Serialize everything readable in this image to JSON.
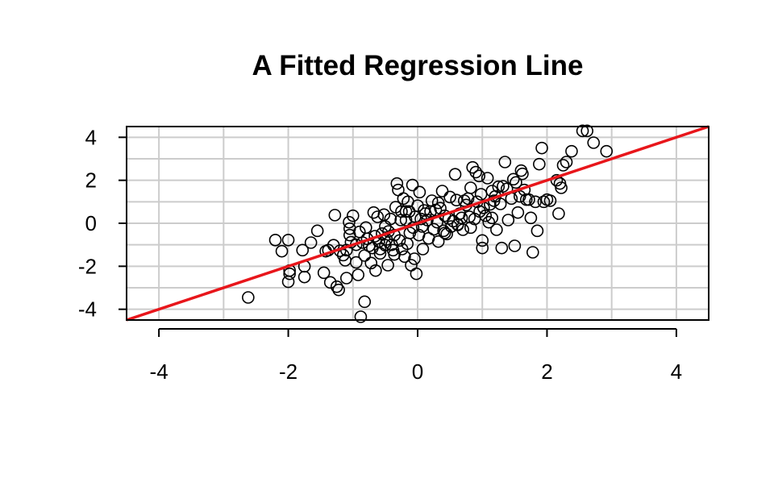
{
  "chart_data": {
    "type": "scatter",
    "title": "A Fitted Regression Line",
    "xlabel": "",
    "ylabel": "",
    "xlim": [
      -4.5,
      4.5
    ],
    "ylim": [
      -4.5,
      4.5
    ],
    "x_ticks": [
      -4,
      -2,
      0,
      2,
      4
    ],
    "y_ticks": [
      -4,
      -2,
      0,
      2,
      4
    ],
    "x_tick_labels": [
      "-4",
      "-2",
      "0",
      "2",
      "4"
    ],
    "y_tick_labels": [
      "4",
      "2",
      "0",
      "-2",
      "-4"
    ],
    "grid": true,
    "grid_minor_x": [
      -3,
      -1,
      1,
      3
    ],
    "grid_minor_y": [
      -3,
      -1,
      1,
      3
    ],
    "regression_line": {
      "intercept": 0.0,
      "slope": 1.0,
      "color": "#e8161b"
    },
    "colors": {
      "points": "#000000",
      "grid": "#cccccc",
      "fit": "#e8161b"
    },
    "points": [
      [
        -2.62,
        -3.45
      ],
      [
        -2.2,
        -0.78
      ],
      [
        -2.1,
        -1.3
      ],
      [
        -2.0,
        -0.78
      ],
      [
        -2.0,
        -2.72
      ],
      [
        -1.98,
        -2.2
      ],
      [
        -1.98,
        -2.35
      ],
      [
        -1.78,
        -1.25
      ],
      [
        -1.75,
        -2.0
      ],
      [
        -1.75,
        -2.5
      ],
      [
        -1.65,
        -0.9
      ],
      [
        -1.55,
        -0.35
      ],
      [
        -1.45,
        -2.3
      ],
      [
        -1.42,
        -1.3
      ],
      [
        -1.38,
        -1.25
      ],
      [
        -1.35,
        -2.75
      ],
      [
        -1.3,
        -1.02
      ],
      [
        -1.28,
        0.38
      ],
      [
        -1.25,
        -2.95
      ],
      [
        -1.22,
        -3.1
      ],
      [
        -1.2,
        -1.28
      ],
      [
        -1.15,
        -1.48
      ],
      [
        -1.12,
        -1.72
      ],
      [
        -1.1,
        -2.55
      ],
      [
        -1.1,
        -1.25
      ],
      [
        -1.06,
        0.05
      ],
      [
        -1.05,
        -0.25
      ],
      [
        -1.05,
        -0.55
      ],
      [
        -1.03,
        -0.88
      ],
      [
        -1.0,
        0.35
      ],
      [
        -0.95,
        -1.82
      ],
      [
        -0.92,
        -2.4
      ],
      [
        -0.9,
        -0.4
      ],
      [
        -0.88,
        -4.35
      ],
      [
        -0.85,
        -0.9
      ],
      [
        -0.82,
        -3.65
      ],
      [
        -0.8,
        -0.2
      ],
      [
        -0.78,
        -0.72
      ],
      [
        -0.75,
        -1.05
      ],
      [
        -0.72,
        -1.85
      ],
      [
        -0.7,
        -1.15
      ],
      [
        -0.68,
        0.5
      ],
      [
        -0.66,
        -0.6
      ],
      [
        -0.65,
        -2.2
      ],
      [
        -0.62,
        0.3
      ],
      [
        -0.6,
        -0.85
      ],
      [
        -0.58,
        -1.2
      ],
      [
        -0.55,
        -0.48
      ],
      [
        -0.52,
        0.4
      ],
      [
        -0.5,
        -0.15
      ],
      [
        -0.5,
        -1.02
      ],
      [
        -0.48,
        -0.75
      ],
      [
        -0.46,
        -1.95
      ],
      [
        -0.45,
        -0.38
      ],
      [
        -0.42,
        0.2
      ],
      [
        -0.4,
        -1.0
      ],
      [
        -0.38,
        -1.25
      ],
      [
        -0.36,
        -0.55
      ],
      [
        -0.34,
        0.75
      ],
      [
        -0.32,
        1.85
      ],
      [
        -0.3,
        1.55
      ],
      [
        -0.28,
        -0.8
      ],
      [
        -0.26,
        0.15
      ],
      [
        -0.25,
        0.55
      ],
      [
        -0.22,
        1.15
      ],
      [
        -0.2,
        -1.55
      ],
      [
        -0.18,
        0.15
      ],
      [
        -0.16,
        -0.95
      ],
      [
        -0.15,
        1.0
      ],
      [
        -0.13,
        0.55
      ],
      [
        -0.12,
        -0.45
      ],
      [
        -0.1,
        -1.95
      ],
      [
        -0.08,
        1.78
      ],
      [
        -0.07,
        -0.2
      ],
      [
        -0.05,
        -1.65
      ],
      [
        -0.04,
        0.3
      ],
      [
        -0.02,
        -2.35
      ],
      [
        0.0,
        0.82
      ],
      [
        0.02,
        -0.55
      ],
      [
        0.03,
        1.45
      ],
      [
        0.05,
        0.2
      ],
      [
        0.07,
        -0.15
      ],
      [
        0.08,
        -1.2
      ],
      [
        0.1,
        0.6
      ],
      [
        0.12,
        0.45
      ],
      [
        0.15,
        0.15
      ],
      [
        0.17,
        -0.7
      ],
      [
        0.2,
        0.55
      ],
      [
        0.22,
        1.05
      ],
      [
        0.25,
        -0.28
      ],
      [
        0.28,
        0.62
      ],
      [
        0.3,
        0.05
      ],
      [
        0.32,
        -0.85
      ],
      [
        0.35,
        0.7
      ],
      [
        0.38,
        1.5
      ],
      [
        0.4,
        -0.35
      ],
      [
        0.42,
        0.35
      ],
      [
        0.45,
        -0.5
      ],
      [
        0.48,
        0.22
      ],
      [
        0.5,
        1.22
      ],
      [
        0.52,
        -0.15
      ],
      [
        0.55,
        0.1
      ],
      [
        0.58,
        2.28
      ],
      [
        0.6,
        1.08
      ],
      [
        0.62,
        -0.08
      ],
      [
        0.65,
        0.45
      ],
      [
        0.68,
        0.25
      ],
      [
        0.7,
        -0.3
      ],
      [
        0.72,
        1.05
      ],
      [
        0.75,
        0.85
      ],
      [
        0.78,
        1.15
      ],
      [
        0.8,
        0.3
      ],
      [
        0.82,
        1.65
      ],
      [
        0.85,
        2.6
      ],
      [
        0.88,
        0.2
      ],
      [
        0.9,
        2.38
      ],
      [
        0.92,
        1.0
      ],
      [
        0.95,
        2.2
      ],
      [
        0.96,
        0.55
      ],
      [
        0.98,
        1.35
      ],
      [
        1.0,
        -0.8
      ],
      [
        1.02,
        0.72
      ],
      [
        1.05,
        0.35
      ],
      [
        1.08,
        2.1
      ],
      [
        1.1,
        0.05
      ],
      [
        1.12,
        0.88
      ],
      [
        1.15,
        1.5
      ],
      [
        1.18,
        1.05
      ],
      [
        1.2,
        1.25
      ],
      [
        1.22,
        -0.3
      ],
      [
        1.25,
        1.7
      ],
      [
        1.28,
        0.9
      ],
      [
        1.3,
        -1.15
      ],
      [
        1.32,
        1.72
      ],
      [
        1.35,
        2.85
      ],
      [
        1.38,
        1.6
      ],
      [
        1.4,
        0.15
      ],
      [
        1.45,
        1.15
      ],
      [
        1.48,
        2.05
      ],
      [
        1.5,
        -1.05
      ],
      [
        1.52,
        1.9
      ],
      [
        1.55,
        0.5
      ],
      [
        1.58,
        1.25
      ],
      [
        1.6,
        2.45
      ],
      [
        1.62,
        2.3
      ],
      [
        1.65,
        1.55
      ],
      [
        1.68,
        1.1
      ],
      [
        1.72,
        1.1
      ],
      [
        1.75,
        0.25
      ],
      [
        1.78,
        -1.35
      ],
      [
        1.82,
        1.0
      ],
      [
        1.85,
        -0.35
      ],
      [
        1.88,
        2.75
      ],
      [
        1.92,
        3.5
      ],
      [
        1.95,
        1.0
      ],
      [
        2.0,
        1.1
      ],
      [
        2.05,
        1.05
      ],
      [
        2.15,
        2.0
      ],
      [
        2.2,
        1.85
      ],
      [
        2.25,
        2.7
      ],
      [
        2.3,
        2.85
      ],
      [
        2.38,
        3.35
      ],
      [
        2.55,
        4.3
      ],
      [
        2.62,
        4.3
      ],
      [
        2.72,
        3.75
      ],
      [
        2.92,
        3.35
      ],
      [
        2.18,
        0.45
      ],
      [
        2.22,
        1.65
      ],
      [
        1.0,
        -1.15
      ],
      [
        0.62,
        -0.05
      ],
      [
        -0.58,
        -1.4
      ],
      [
        -0.36,
        -1.45
      ],
      [
        -0.24,
        -1.2
      ],
      [
        0.42,
        -0.45
      ],
      [
        0.82,
        -0.2
      ],
      [
        -0.82,
        -1.5
      ],
      [
        -0.95,
        -1.0
      ],
      [
        1.15,
        0.25
      ],
      [
        0.32,
        0.95
      ],
      [
        -0.18,
        0.55
      ]
    ]
  }
}
